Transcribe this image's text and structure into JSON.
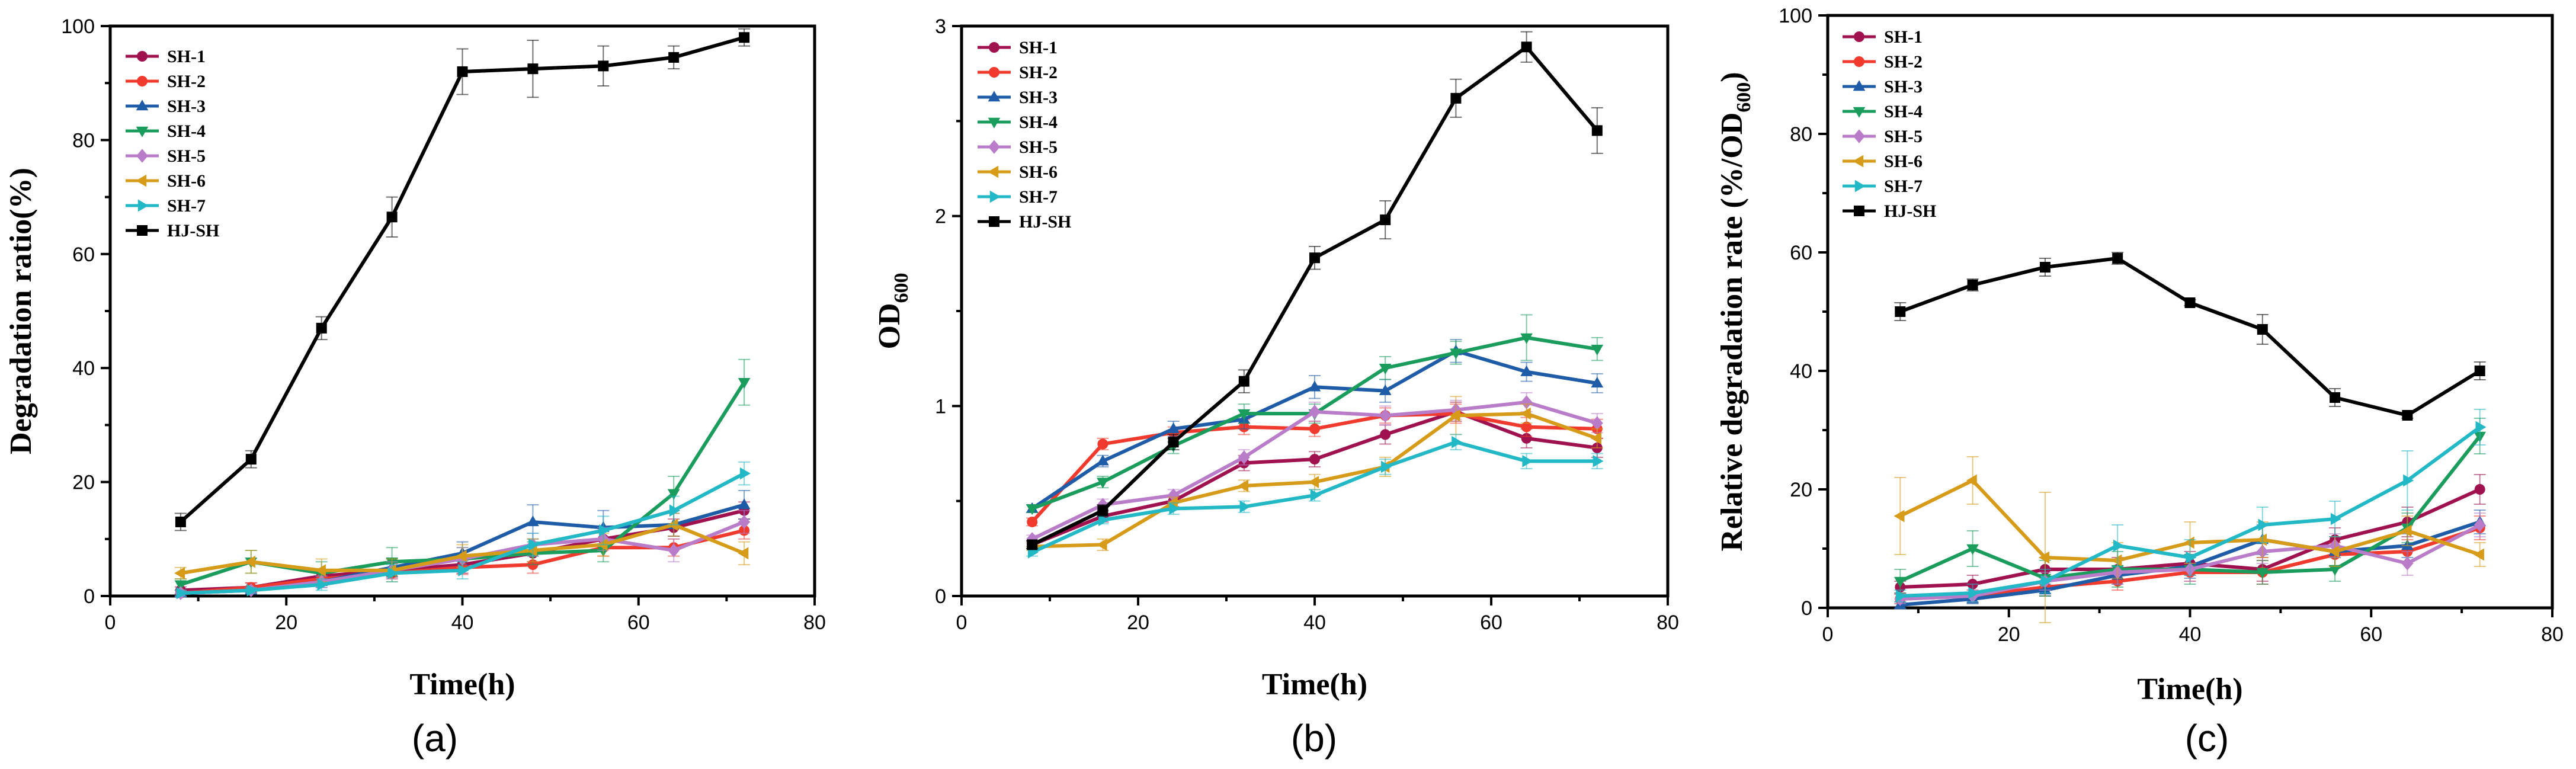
{
  "chart_data": [
    {
      "type": "line",
      "panel": "(a)",
      "xlabel": "Time(h)",
      "ylabel": "Degradation ratio(%)",
      "xlim": [
        0,
        80
      ],
      "ylim": [
        0,
        100
      ],
      "xticks": [
        0,
        20,
        40,
        60,
        80
      ],
      "yticks": [
        0,
        20,
        40,
        60,
        80,
        100
      ],
      "x": [
        8,
        16,
        24,
        32,
        40,
        48,
        56,
        64,
        72
      ],
      "series": [
        {
          "name": "SH-1",
          "color": "#a0124f",
          "marker": "circle",
          "values": [
            1.0,
            1.5,
            3.5,
            4.5,
            5.5,
            7.5,
            10.0,
            12.0,
            15.0
          ],
          "errors": [
            0.6,
            0.8,
            1.0,
            1.2,
            1.5,
            1.5,
            1.5,
            1.5,
            1.5
          ]
        },
        {
          "name": "SH-2",
          "color": "#f03a2d",
          "marker": "circle",
          "values": [
            0.5,
            1.5,
            3.0,
            4.0,
            5.0,
            5.5,
            8.5,
            8.5,
            11.5
          ],
          "errors": [
            0.5,
            0.8,
            1.0,
            1.0,
            1.2,
            1.5,
            1.5,
            1.5,
            1.5
          ]
        },
        {
          "name": "SH-3",
          "color": "#1f5ca8",
          "marker": "triangle-up",
          "values": [
            0.5,
            1.0,
            2.5,
            5.0,
            7.5,
            13.0,
            12.0,
            12.5,
            16.0
          ],
          "errors": [
            0.5,
            0.5,
            1.0,
            1.5,
            2.0,
            3.0,
            3.0,
            2.0,
            2.5
          ]
        },
        {
          "name": "SH-4",
          "color": "#1a9c5c",
          "marker": "triangle-down",
          "values": [
            2.0,
            6.0,
            4.0,
            6.0,
            6.5,
            7.5,
            8.0,
            18.0,
            37.5
          ],
          "errors": [
            1.0,
            2.0,
            2.0,
            2.5,
            2.0,
            2.0,
            2.0,
            3.0,
            4.0
          ]
        },
        {
          "name": "SH-5",
          "color": "#b97cc9",
          "marker": "diamond",
          "values": [
            0.5,
            1.0,
            2.5,
            4.5,
            6.5,
            9.0,
            10.0,
            8.0,
            13.0
          ],
          "errors": [
            0.5,
            0.5,
            1.0,
            1.5,
            2.0,
            2.0,
            2.0,
            2.0,
            2.0
          ]
        },
        {
          "name": "SH-6",
          "color": "#d79b1a",
          "marker": "triangle-left",
          "values": [
            4.0,
            6.0,
            4.5,
            4.5,
            7.0,
            8.0,
            9.0,
            12.5,
            7.5
          ],
          "errors": [
            1.0,
            2.0,
            2.0,
            2.0,
            2.0,
            2.0,
            2.0,
            2.0,
            2.0
          ]
        },
        {
          "name": "SH-7",
          "color": "#22b8c6",
          "marker": "triangle-right",
          "values": [
            0.5,
            1.0,
            2.0,
            4.0,
            4.5,
            9.0,
            11.5,
            15.0,
            21.5
          ],
          "errors": [
            0.5,
            0.5,
            1.0,
            1.5,
            1.5,
            2.0,
            2.5,
            2.5,
            2.0
          ]
        },
        {
          "name": "HJ-SH",
          "color": "#000000",
          "marker": "square",
          "values": [
            13.0,
            24.0,
            47.0,
            66.5,
            92.0,
            92.5,
            93.0,
            94.5,
            98.0
          ],
          "errors": [
            1.5,
            1.5,
            2.0,
            3.5,
            4.0,
            5.0,
            3.5,
            2.0,
            1.5
          ]
        }
      ]
    },
    {
      "type": "line",
      "panel": "(b)",
      "xlabel": "Time(h)",
      "ylabel": "OD",
      "ylabel_sub": "600",
      "xlim": [
        0,
        80
      ],
      "ylim": [
        0,
        3
      ],
      "xticks": [
        0,
        20,
        40,
        60,
        80
      ],
      "yticks": [
        0,
        1,
        2,
        3
      ],
      "x": [
        8,
        16,
        24,
        32,
        40,
        48,
        56,
        64,
        72
      ],
      "series": [
        {
          "name": "SH-1",
          "color": "#a0124f",
          "marker": "circle",
          "values": [
            0.27,
            0.42,
            0.5,
            0.7,
            0.72,
            0.85,
            0.97,
            0.83,
            0.78
          ],
          "errors": [
            0.02,
            0.03,
            0.03,
            0.04,
            0.04,
            0.05,
            0.05,
            0.05,
            0.05
          ]
        },
        {
          "name": "SH-2",
          "color": "#f03a2d",
          "marker": "circle",
          "values": [
            0.39,
            0.8,
            0.86,
            0.89,
            0.88,
            0.95,
            0.96,
            0.89,
            0.88
          ],
          "errors": [
            0.02,
            0.03,
            0.03,
            0.04,
            0.04,
            0.04,
            0.05,
            0.05,
            0.05
          ]
        },
        {
          "name": "SH-3",
          "color": "#1f5ca8",
          "marker": "triangle-up",
          "values": [
            0.46,
            0.71,
            0.88,
            0.93,
            1.1,
            1.08,
            1.29,
            1.18,
            1.12
          ],
          "errors": [
            0.02,
            0.03,
            0.04,
            0.05,
            0.06,
            0.06,
            0.06,
            0.05,
            0.05
          ]
        },
        {
          "name": "SH-4",
          "color": "#1a9c5c",
          "marker": "triangle-down",
          "values": [
            0.46,
            0.6,
            0.79,
            0.96,
            0.96,
            1.2,
            1.28,
            1.36,
            1.3
          ],
          "errors": [
            0.02,
            0.03,
            0.04,
            0.05,
            0.05,
            0.06,
            0.06,
            0.12,
            0.06
          ]
        },
        {
          "name": "SH-5",
          "color": "#b97cc9",
          "marker": "diamond",
          "values": [
            0.3,
            0.48,
            0.53,
            0.73,
            0.97,
            0.95,
            0.98,
            1.02,
            0.91
          ],
          "errors": [
            0.02,
            0.03,
            0.03,
            0.04,
            0.05,
            0.05,
            0.05,
            0.05,
            0.05
          ]
        },
        {
          "name": "SH-6",
          "color": "#d79b1a",
          "marker": "triangle-left",
          "values": [
            0.26,
            0.27,
            0.49,
            0.58,
            0.6,
            0.68,
            0.95,
            0.96,
            0.83
          ],
          "errors": [
            0.02,
            0.03,
            0.03,
            0.03,
            0.04,
            0.05,
            0.1,
            0.05,
            0.05
          ]
        },
        {
          "name": "SH-7",
          "color": "#22b8c6",
          "marker": "triangle-right",
          "values": [
            0.23,
            0.4,
            0.46,
            0.47,
            0.53,
            0.68,
            0.81,
            0.71,
            0.71
          ],
          "errors": [
            0.02,
            0.02,
            0.03,
            0.03,
            0.03,
            0.04,
            0.04,
            0.04,
            0.04
          ]
        },
        {
          "name": "HJ-SH",
          "color": "#000000",
          "marker": "square",
          "values": [
            0.27,
            0.45,
            0.81,
            1.13,
            1.78,
            1.98,
            2.62,
            2.89,
            2.45
          ],
          "errors": [
            0.02,
            0.03,
            0.04,
            0.06,
            0.06,
            0.1,
            0.1,
            0.08,
            0.12
          ]
        }
      ]
    },
    {
      "type": "line",
      "panel": "(c)",
      "xlabel": "Time(h)",
      "ylabel": "Relative degradation rate (%/OD",
      "ylabel_sub": "600",
      "ylabel_end": ")",
      "xlim": [
        0,
        80
      ],
      "ylim": [
        0,
        100
      ],
      "xticks": [
        0,
        20,
        40,
        60,
        80
      ],
      "yticks": [
        0,
        20,
        40,
        60,
        80,
        100
      ],
      "x": [
        8,
        16,
        24,
        32,
        40,
        48,
        56,
        64,
        72
      ],
      "series": [
        {
          "name": "SH-1",
          "color": "#a0124f",
          "marker": "circle",
          "values": [
            3.5,
            4.0,
            6.5,
            6.5,
            7.5,
            6.5,
            11.5,
            14.5,
            20.0
          ],
          "errors": [
            1.0,
            1.5,
            2.0,
            2.0,
            2.0,
            2.0,
            2.0,
            2.5,
            2.5
          ]
        },
        {
          "name": "SH-2",
          "color": "#f03a2d",
          "marker": "circle",
          "values": [
            1.5,
            2.0,
            3.5,
            4.5,
            6.0,
            6.0,
            9.0,
            9.5,
            13.5
          ],
          "errors": [
            0.8,
            1.0,
            1.5,
            1.5,
            1.5,
            2.0,
            2.0,
            2.0,
            2.0
          ]
        },
        {
          "name": "SH-3",
          "color": "#1f5ca8",
          "marker": "triangle-up",
          "values": [
            0.5,
            1.5,
            3.0,
            5.5,
            7.0,
            11.5,
            9.5,
            10.5,
            14.5
          ],
          "errors": [
            0.5,
            0.8,
            1.0,
            1.5,
            2.0,
            2.5,
            2.5,
            2.0,
            2.0
          ]
        },
        {
          "name": "SH-4",
          "color": "#1a9c5c",
          "marker": "triangle-down",
          "values": [
            4.5,
            10.0,
            5.0,
            6.5,
            6.5,
            6.0,
            6.5,
            13.5,
            29.0
          ],
          "errors": [
            2.0,
            3.0,
            3.0,
            3.0,
            2.5,
            2.0,
            2.0,
            2.5,
            3.0
          ]
        },
        {
          "name": "SH-5",
          "color": "#b97cc9",
          "marker": "diamond",
          "values": [
            1.5,
            2.0,
            4.5,
            6.0,
            6.5,
            9.5,
            10.5,
            7.5,
            14.0
          ],
          "errors": [
            0.8,
            1.0,
            1.5,
            2.0,
            2.0,
            2.0,
            2.0,
            2.0,
            2.0
          ]
        },
        {
          "name": "SH-6",
          "color": "#d79b1a",
          "marker": "triangle-left",
          "values": [
            15.5,
            21.5,
            8.5,
            8.0,
            11.0,
            11.5,
            9.5,
            13.0,
            9.0
          ],
          "errors": [
            6.5,
            4.0,
            11.0,
            3.0,
            3.5,
            3.0,
            2.5,
            2.5,
            2.0
          ]
        },
        {
          "name": "SH-7",
          "color": "#22b8c6",
          "marker": "triangle-right",
          "values": [
            2.0,
            2.5,
            4.5,
            10.5,
            8.5,
            14.0,
            15.0,
            21.5,
            30.5
          ],
          "errors": [
            1.0,
            1.5,
            2.0,
            3.5,
            3.0,
            3.0,
            3.0,
            5.0,
            3.0
          ]
        },
        {
          "name": "HJ-SH",
          "color": "#000000",
          "marker": "square",
          "values": [
            50.0,
            54.5,
            57.5,
            59.0,
            51.5,
            47.0,
            35.5,
            32.5,
            40.0
          ],
          "errors": [
            1.5,
            1.0,
            1.5,
            1.0,
            0.5,
            2.5,
            1.5,
            0.5,
            1.5
          ]
        }
      ]
    }
  ],
  "captions": [
    "(a)",
    "(b)",
    "(c)"
  ]
}
